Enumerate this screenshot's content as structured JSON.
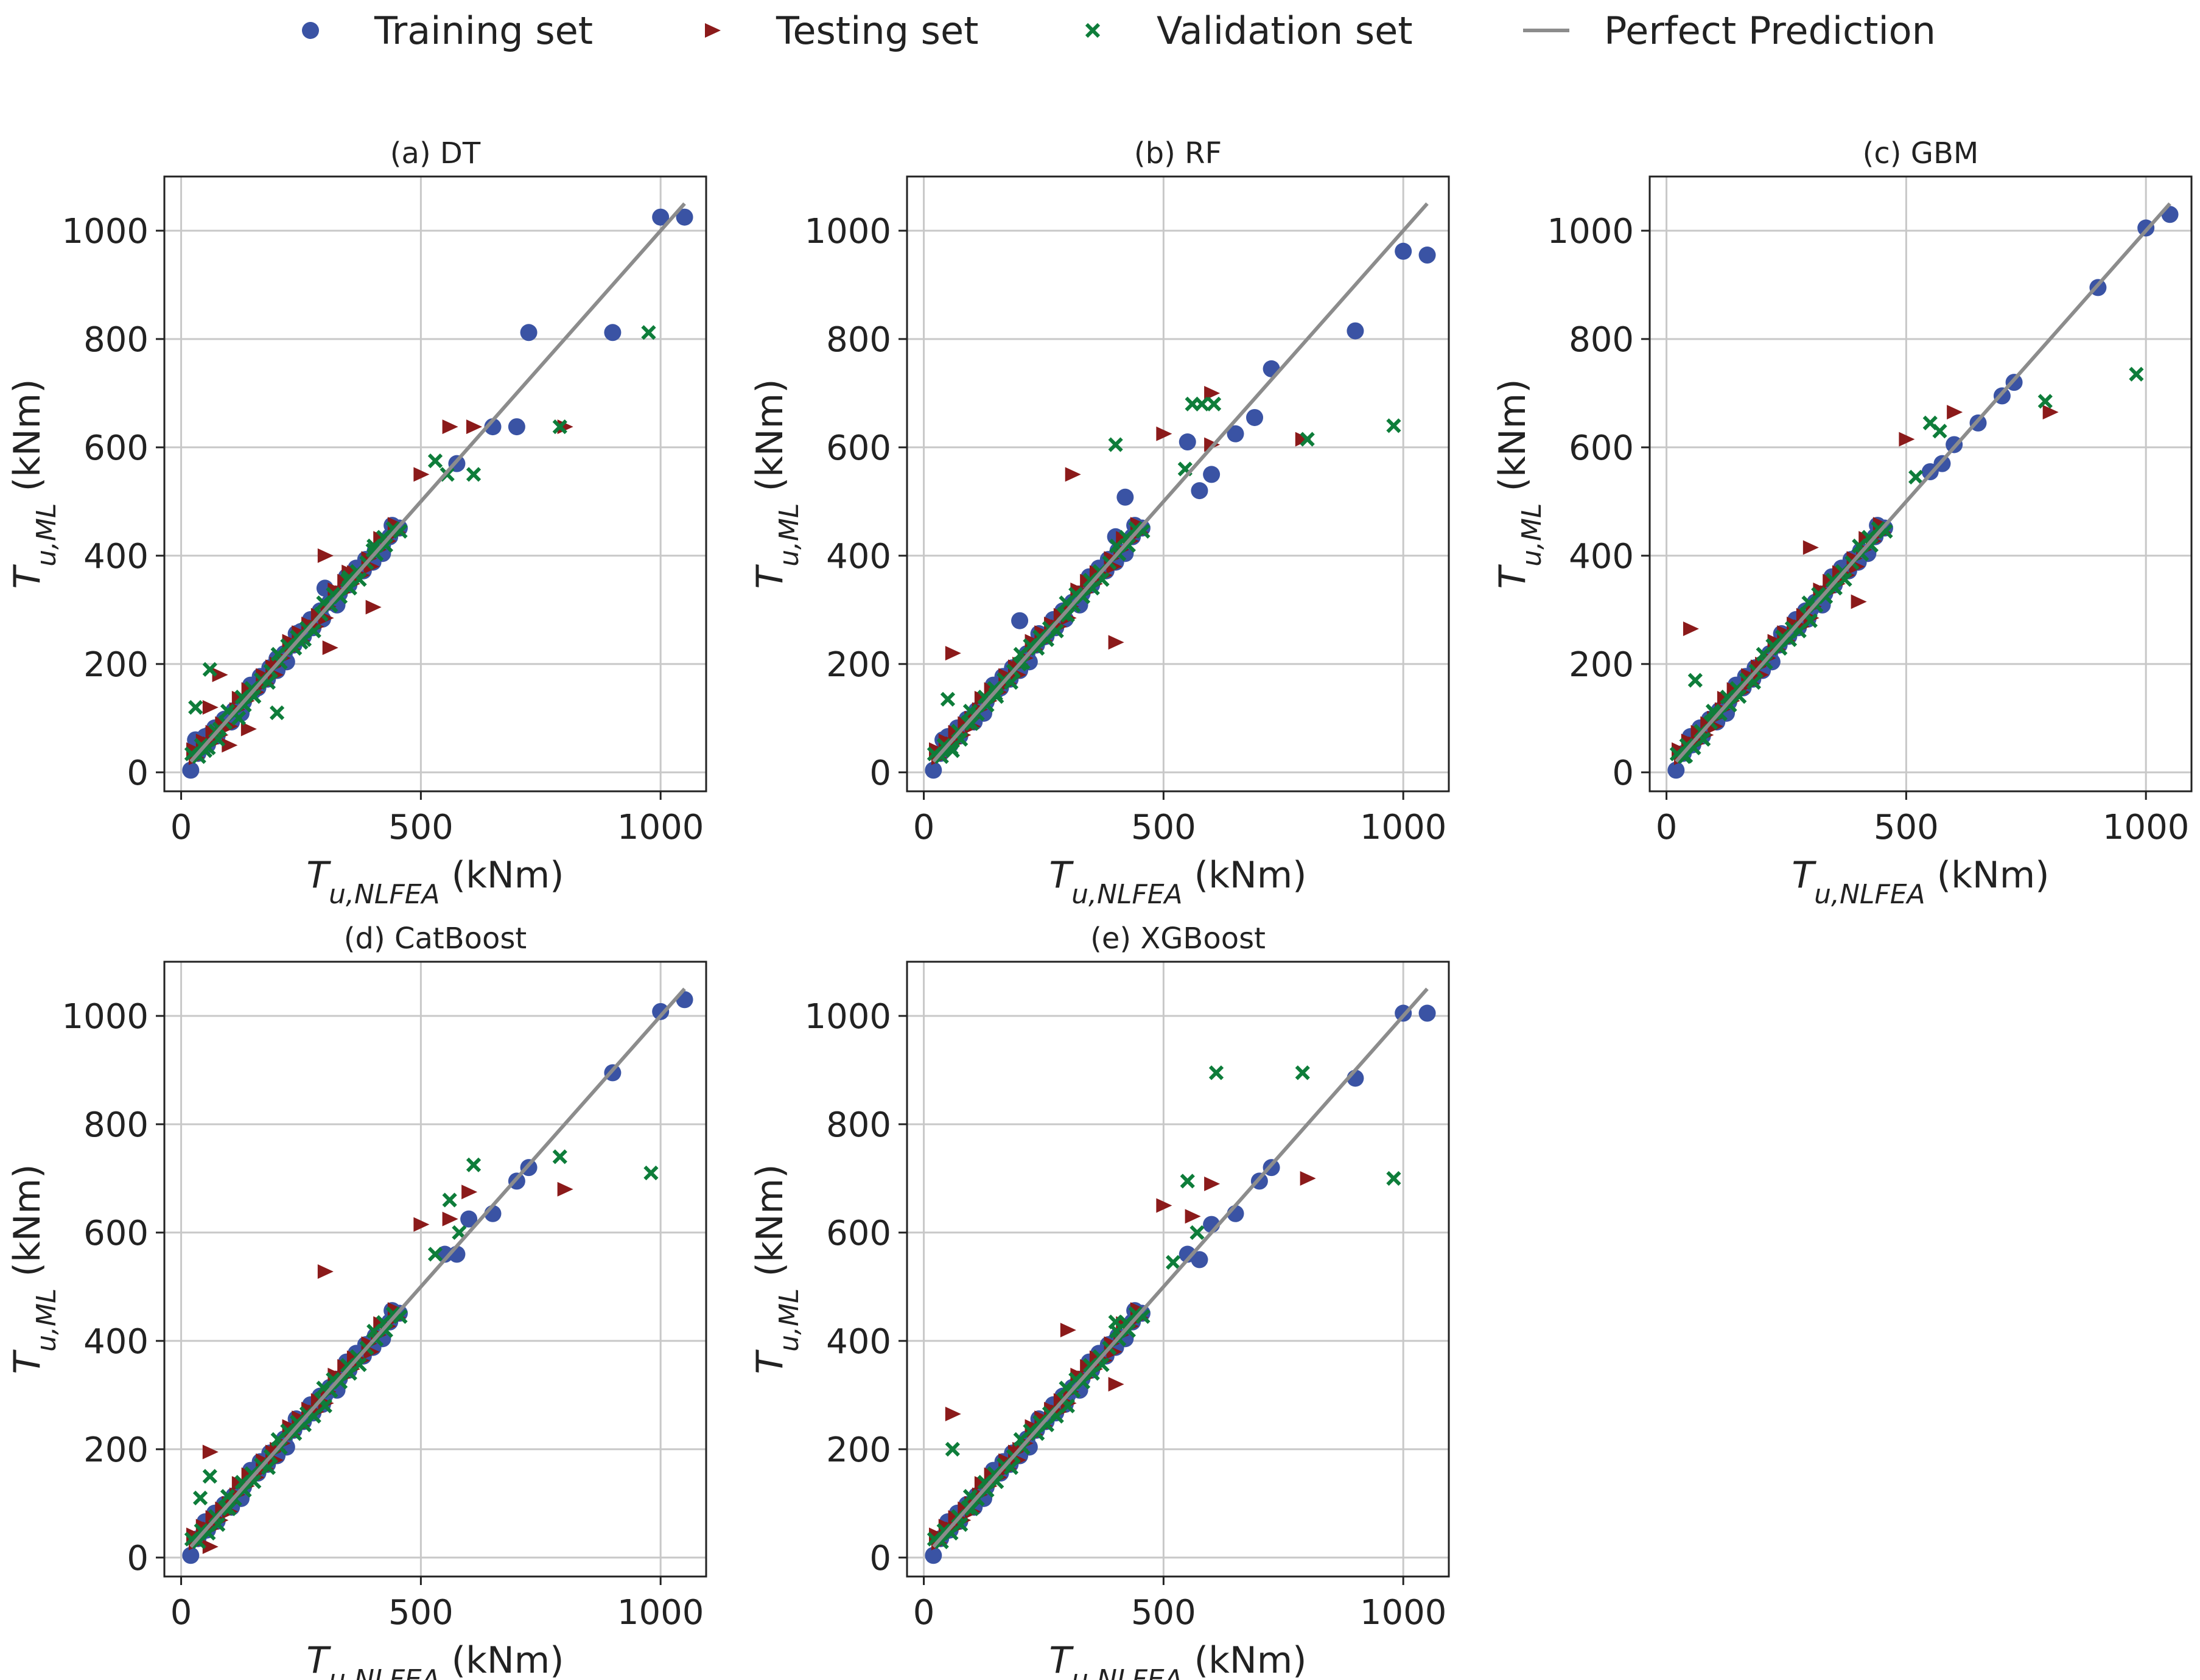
{
  "chart_data": [
    {
      "type": "scatter",
      "title": "(a) DT",
      "xlabel": "T_{u,NLFEA} (kNm)",
      "ylabel": "T_{u,ML} (kNm)",
      "xlim": [
        -35,
        1095
      ],
      "ylim": [
        -35,
        1100
      ],
      "xticks": [
        0,
        500,
        1000
      ],
      "yticks": [
        0,
        200,
        400,
        600,
        800,
        1000
      ],
      "grid": true,
      "ideal_line": [
        20,
        1050
      ],
      "series": [
        {
          "name": "Training set",
          "marker": "circle",
          "color": "#3a53a4",
          "points": [
            [
              1000,
              1025
            ],
            [
              1050,
              1025
            ],
            [
              900,
              812
            ],
            [
              725,
              812
            ],
            [
              700,
              638
            ],
            [
              650,
              638
            ],
            [
              575,
              570
            ],
            [
              300,
              340
            ],
            [
              250,
              260
            ],
            [
              200,
              210
            ],
            [
              150,
              150
            ],
            [
              100,
              100
            ],
            [
              60,
              70
            ],
            [
              30,
              60
            ],
            [
              420,
              420
            ],
            [
              350,
              355
            ],
            [
              270,
              280
            ]
          ]
        },
        {
          "name": "Testing set",
          "marker": "triangle-right",
          "color": "#8b1a1a",
          "points": [
            [
              800,
              638
            ],
            [
              610,
              638
            ],
            [
              560,
              638
            ],
            [
              500,
              550
            ],
            [
              300,
              400
            ],
            [
              400,
              305
            ],
            [
              310,
              230
            ],
            [
              150,
              150
            ],
            [
              140,
              80
            ],
            [
              100,
              50
            ],
            [
              60,
              120
            ],
            [
              80,
              180
            ],
            [
              200,
              200
            ],
            [
              350,
              370
            ]
          ]
        },
        {
          "name": "Validation set",
          "marker": "x",
          "color": "#0e7d3a",
          "points": [
            [
              975,
              812
            ],
            [
              790,
              638
            ],
            [
              610,
              550
            ],
            [
              530,
              575
            ],
            [
              555,
              550
            ],
            [
              60,
              190
            ],
            [
              30,
              120
            ],
            [
              200,
              110
            ],
            [
              250,
              240
            ],
            [
              120,
              100
            ],
            [
              400,
              410
            ],
            [
              350,
              360
            ],
            [
              50,
              40
            ],
            [
              80,
              80
            ]
          ]
        }
      ]
    },
    {
      "type": "scatter",
      "title": "(b) RF",
      "xlabel": "T_{u,NLFEA} (kNm)",
      "ylabel": "T_{u,ML} (kNm)",
      "xlim": [
        -35,
        1095
      ],
      "ylim": [
        -35,
        1100
      ],
      "xticks": [
        0,
        500,
        1000
      ],
      "yticks": [
        0,
        200,
        400,
        600,
        800,
        1000
      ],
      "grid": true,
      "ideal_line": [
        20,
        1050
      ],
      "series": [
        {
          "name": "Training set",
          "marker": "circle",
          "color": "#3a53a4",
          "points": [
            [
              1000,
              962
            ],
            [
              1050,
              955
            ],
            [
              900,
              815
            ],
            [
              725,
              745
            ],
            [
              690,
              655
            ],
            [
              650,
              625
            ],
            [
              600,
              550
            ],
            [
              575,
              520
            ],
            [
              550,
              610
            ],
            [
              420,
              508
            ],
            [
              400,
              435
            ],
            [
              200,
              280
            ],
            [
              250,
              250
            ],
            [
              150,
              150
            ],
            [
              100,
              100
            ],
            [
              40,
              60
            ],
            [
              330,
              330
            ]
          ]
        },
        {
          "name": "Testing set",
          "marker": "triangle-right",
          "color": "#8b1a1a",
          "points": [
            [
              600,
              700
            ],
            [
              500,
              625
            ],
            [
              600,
              605
            ],
            [
              790,
              615
            ],
            [
              310,
              550
            ],
            [
              400,
              240
            ],
            [
              60,
              220
            ],
            [
              200,
              200
            ],
            [
              100,
              100
            ],
            [
              350,
              350
            ]
          ]
        },
        {
          "name": "Validation set",
          "marker": "x",
          "color": "#0e7d3a",
          "points": [
            [
              980,
              640
            ],
            [
              800,
              615
            ],
            [
              560,
              680
            ],
            [
              580,
              680
            ],
            [
              605,
              680
            ],
            [
              545,
              560
            ],
            [
              400,
              605
            ],
            [
              50,
              135
            ],
            [
              150,
              145
            ],
            [
              200,
              200
            ],
            [
              300,
              290
            ],
            [
              60,
              40
            ],
            [
              100,
              90
            ]
          ]
        }
      ]
    },
    {
      "type": "scatter",
      "title": "(c) GBM",
      "xlabel": "T_{u,NLFEA} (kNm)",
      "ylabel": "T_{u,ML} (kNm)",
      "xlim": [
        -35,
        1095
      ],
      "ylim": [
        -35,
        1100
      ],
      "xticks": [
        0,
        500,
        1000
      ],
      "yticks": [
        0,
        200,
        400,
        600,
        800,
        1000
      ],
      "grid": true,
      "ideal_line": [
        20,
        1050
      ],
      "series": [
        {
          "name": "Training set",
          "marker": "circle",
          "color": "#3a53a4",
          "points": [
            [
              1000,
              1005
            ],
            [
              1050,
              1030
            ],
            [
              900,
              895
            ],
            [
              725,
              720
            ],
            [
              700,
              695
            ],
            [
              650,
              645
            ],
            [
              600,
              605
            ],
            [
              575,
              570
            ],
            [
              550,
              555
            ],
            [
              400,
              400
            ],
            [
              300,
              300
            ],
            [
              200,
              200
            ],
            [
              100,
              100
            ],
            [
              50,
              50
            ]
          ]
        },
        {
          "name": "Testing set",
          "marker": "triangle-right",
          "color": "#8b1a1a",
          "points": [
            [
              800,
              665
            ],
            [
              600,
              665
            ],
            [
              500,
              615
            ],
            [
              300,
              415
            ],
            [
              400,
              315
            ],
            [
              50,
              265
            ],
            [
              200,
              200
            ],
            [
              100,
              100
            ]
          ]
        },
        {
          "name": "Validation set",
          "marker": "x",
          "color": "#0e7d3a",
          "points": [
            [
              980,
              735
            ],
            [
              790,
              685
            ],
            [
              550,
              645
            ],
            [
              570,
              630
            ],
            [
              520,
              545
            ],
            [
              60,
              170
            ],
            [
              100,
              110
            ],
            [
              300,
              280
            ],
            [
              40,
              30
            ]
          ]
        }
      ]
    },
    {
      "type": "scatter",
      "title": "(d) CatBoost",
      "xlabel": "T_{u,NLFEA} (kNm)",
      "ylabel": "T_{u,ML} (kNm)",
      "xlim": [
        -35,
        1095
      ],
      "ylim": [
        -35,
        1100
      ],
      "xticks": [
        0,
        500,
        1000
      ],
      "yticks": [
        0,
        200,
        400,
        600,
        800,
        1000
      ],
      "grid": true,
      "ideal_line": [
        20,
        1050
      ],
      "series": [
        {
          "name": "Training set",
          "marker": "circle",
          "color": "#3a53a4",
          "points": [
            [
              1000,
              1008
            ],
            [
              1050,
              1030
            ],
            [
              900,
              895
            ],
            [
              725,
              720
            ],
            [
              700,
              695
            ],
            [
              650,
              635
            ],
            [
              600,
              625
            ],
            [
              575,
              560
            ],
            [
              550,
              560
            ],
            [
              400,
              400
            ],
            [
              300,
              300
            ],
            [
              200,
              200
            ],
            [
              100,
              100
            ],
            [
              50,
              50
            ]
          ]
        },
        {
          "name": "Testing set",
          "marker": "triangle-right",
          "color": "#8b1a1a",
          "points": [
            [
              800,
              680
            ],
            [
              600,
              675
            ],
            [
              500,
              615
            ],
            [
              560,
              625
            ],
            [
              300,
              528
            ],
            [
              60,
              195
            ],
            [
              200,
              200
            ],
            [
              100,
              100
            ],
            [
              60,
              20
            ]
          ]
        },
        {
          "name": "Validation set",
          "marker": "x",
          "color": "#0e7d3a",
          "points": [
            [
              980,
              710
            ],
            [
              790,
              740
            ],
            [
              610,
              725
            ],
            [
              560,
              660
            ],
            [
              580,
              600
            ],
            [
              530,
              560
            ],
            [
              40,
              110
            ],
            [
              60,
              150
            ],
            [
              300,
              280
            ],
            [
              100,
              90
            ]
          ]
        }
      ]
    },
    {
      "type": "scatter",
      "title": "(e) XGBoost",
      "xlabel": "T_{u,NLFEA} (kNm)",
      "ylabel": "T_{u,ML} (kNm)",
      "xlim": [
        -35,
        1095
      ],
      "ylim": [
        -35,
        1100
      ],
      "xticks": [
        0,
        500,
        1000
      ],
      "yticks": [
        0,
        200,
        400,
        600,
        800,
        1000
      ],
      "grid": true,
      "ideal_line": [
        20,
        1050
      ],
      "series": [
        {
          "name": "Training set",
          "marker": "circle",
          "color": "#3a53a4",
          "points": [
            [
              1000,
              1005
            ],
            [
              1050,
              1005
            ],
            [
              900,
              885
            ],
            [
              725,
              720
            ],
            [
              700,
              695
            ],
            [
              650,
              635
            ],
            [
              600,
              615
            ],
            [
              575,
              550
            ],
            [
              550,
              560
            ],
            [
              400,
              400
            ],
            [
              300,
              300
            ],
            [
              200,
              200
            ],
            [
              100,
              100
            ],
            [
              50,
              50
            ]
          ]
        },
        {
          "name": "Testing set",
          "marker": "triangle-right",
          "color": "#8b1a1a",
          "points": [
            [
              800,
              700
            ],
            [
              600,
              690
            ],
            [
              500,
              650
            ],
            [
              560,
              630
            ],
            [
              300,
              420
            ],
            [
              400,
              320
            ],
            [
              60,
              265
            ],
            [
              200,
              200
            ],
            [
              100,
              100
            ]
          ]
        },
        {
          "name": "Validation set",
          "marker": "x",
          "color": "#0e7d3a",
          "points": [
            [
              980,
              700
            ],
            [
              790,
              895
            ],
            [
              610,
              895
            ],
            [
              550,
              695
            ],
            [
              570,
              600
            ],
            [
              520,
              545
            ],
            [
              60,
              200
            ],
            [
              100,
              90
            ],
            [
              300,
              280
            ],
            [
              400,
              435
            ]
          ]
        }
      ]
    }
  ],
  "legend": {
    "position": "top-center",
    "items": [
      {
        "label": "Training set",
        "marker": "circle",
        "color": "#3a53a4"
      },
      {
        "label": "Testing set",
        "marker": "triangle-right",
        "color": "#8b1a1a"
      },
      {
        "label": "Validation set",
        "marker": "x",
        "color": "#0e7d3a"
      },
      {
        "label": "Perfect Prediction",
        "marker": "line",
        "color": "#8c8c8c"
      }
    ]
  }
}
